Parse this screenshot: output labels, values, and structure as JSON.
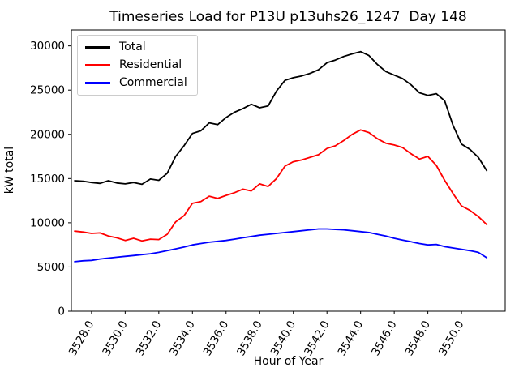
{
  "chart_data": {
    "type": "line",
    "title": "Timeseries Load for P13U p13uhs26_1247  Day 148",
    "xlabel": "Hour of Year",
    "ylabel": "kW total",
    "grid": false,
    "legend_position": "upper left",
    "xlim": [
      3526.8,
      3552.6
    ],
    "ylim": [
      0,
      31800
    ],
    "xticks": [
      3528,
      3530,
      3532,
      3534,
      3536,
      3538,
      3540,
      3542,
      3544,
      3546,
      3548,
      3550
    ],
    "xtick_labels": [
      "3528.0",
      "3530.0",
      "3532.0",
      "3534.0",
      "3536.0",
      "3538.0",
      "3540.0",
      "3542.0",
      "3544.0",
      "3546.0",
      "3548.0",
      "3550.0"
    ],
    "yticks": [
      0,
      5000,
      10000,
      15000,
      20000,
      25000,
      30000
    ],
    "ytick_labels": [
      "0",
      "5000",
      "10000",
      "15000",
      "20000",
      "25000",
      "30000"
    ],
    "x": [
      3527.0,
      3527.5,
      3528.0,
      3528.5,
      3529.0,
      3529.5,
      3530.0,
      3530.5,
      3531.0,
      3531.5,
      3532.0,
      3532.5,
      3533.0,
      3533.5,
      3534.0,
      3534.5,
      3535.0,
      3535.5,
      3536.0,
      3536.5,
      3537.0,
      3537.5,
      3538.0,
      3538.5,
      3539.0,
      3539.5,
      3540.0,
      3540.5,
      3541.0,
      3541.5,
      3542.0,
      3542.5,
      3543.0,
      3543.5,
      3544.0,
      3544.5,
      3545.0,
      3545.5,
      3546.0,
      3546.5,
      3547.0,
      3547.5,
      3548.0,
      3548.5,
      3549.0,
      3549.5,
      3550.0,
      3550.5,
      3551.0,
      3551.5
    ],
    "series": [
      {
        "name": "Total",
        "color": "#000000",
        "values": [
          14750,
          14700,
          14550,
          14450,
          14750,
          14500,
          14400,
          14550,
          14350,
          14950,
          14800,
          15600,
          17500,
          18700,
          20100,
          20400,
          21300,
          21100,
          21900,
          22500,
          22900,
          23400,
          23000,
          23200,
          24900,
          26100,
          26400,
          26600,
          26900,
          27300,
          28100,
          28400,
          28800,
          29100,
          29350,
          28900,
          27900,
          27100,
          26700,
          26300,
          25600,
          24700,
          24400,
          24600,
          23800,
          21000,
          18900,
          18300,
          17400,
          15900
        ]
      },
      {
        "name": "Residential",
        "color": "#ff0000",
        "values": [
          9050,
          8950,
          8800,
          8850,
          8500,
          8300,
          8000,
          8250,
          7950,
          8150,
          8100,
          8700,
          10100,
          10800,
          12200,
          12400,
          13000,
          12750,
          13100,
          13400,
          13800,
          13600,
          14400,
          14100,
          15000,
          16400,
          16900,
          17100,
          17400,
          17700,
          18400,
          18700,
          19300,
          20000,
          20500,
          20200,
          19500,
          19000,
          18800,
          18500,
          17800,
          17200,
          17500,
          16500,
          14800,
          13300,
          11900,
          11400,
          10700,
          9800
        ]
      },
      {
        "name": "Commercial",
        "color": "#0000ff",
        "values": [
          5600,
          5700,
          5750,
          5900,
          6000,
          6100,
          6200,
          6300,
          6400,
          6500,
          6650,
          6850,
          7050,
          7250,
          7500,
          7650,
          7800,
          7900,
          8000,
          8150,
          8300,
          8450,
          8600,
          8700,
          8800,
          8900,
          9000,
          9100,
          9200,
          9300,
          9300,
          9250,
          9200,
          9100,
          9000,
          8900,
          8700,
          8500,
          8250,
          8050,
          7850,
          7650,
          7500,
          7550,
          7300,
          7150,
          7000,
          6850,
          6650,
          6050
        ]
      }
    ]
  }
}
